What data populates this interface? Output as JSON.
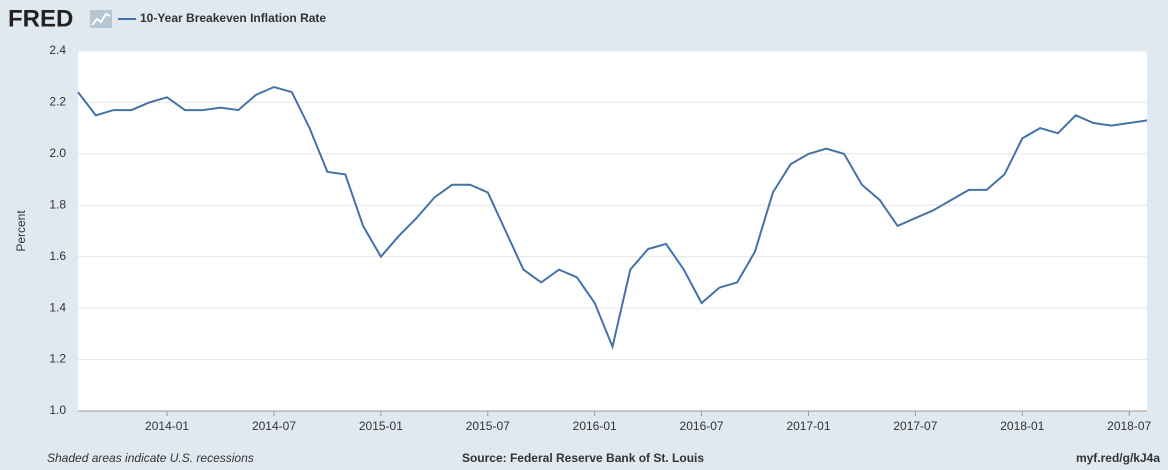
{
  "chart_data": {
    "type": "line",
    "brand": "FRED",
    "ylabel": "Percent",
    "footer_left": "Shaded areas indicate U.S. recessions",
    "footer_center": "Source: Federal Reserve Bank of St. Louis",
    "footer_right": "myf.red/g/kJ4a",
    "x": [
      "2013-08",
      "2013-09",
      "2013-10",
      "2013-11",
      "2013-12",
      "2014-01",
      "2014-02",
      "2014-03",
      "2014-04",
      "2014-05",
      "2014-06",
      "2014-07",
      "2014-08",
      "2014-09",
      "2014-10",
      "2014-11",
      "2014-12",
      "2015-01",
      "2015-02",
      "2015-03",
      "2015-04",
      "2015-05",
      "2015-06",
      "2015-07",
      "2015-08",
      "2015-09",
      "2015-10",
      "2015-11",
      "2015-12",
      "2016-01",
      "2016-02",
      "2016-03",
      "2016-04",
      "2016-05",
      "2016-06",
      "2016-07",
      "2016-08",
      "2016-09",
      "2016-10",
      "2016-11",
      "2016-12",
      "2017-01",
      "2017-02",
      "2017-03",
      "2017-04",
      "2017-05",
      "2017-06",
      "2017-07",
      "2017-08",
      "2017-09",
      "2017-10",
      "2017-11",
      "2017-12",
      "2018-01",
      "2018-02",
      "2018-03",
      "2018-04",
      "2018-05",
      "2018-06",
      "2018-07",
      "2018-08"
    ],
    "series": [
      {
        "name": "10-Year Breakeven Inflation Rate",
        "color": "#4572a7",
        "values": [
          2.24,
          2.15,
          2.17,
          2.17,
          2.2,
          2.22,
          2.17,
          2.17,
          2.18,
          2.17,
          2.23,
          2.26,
          2.24,
          2.1,
          1.93,
          1.92,
          1.72,
          1.6,
          1.68,
          1.75,
          1.83,
          1.88,
          1.88,
          1.85,
          1.7,
          1.55,
          1.5,
          1.55,
          1.52,
          1.42,
          1.25,
          1.55,
          1.63,
          1.65,
          1.55,
          1.42,
          1.48,
          1.5,
          1.62,
          1.85,
          1.96,
          2.0,
          2.02,
          2.0,
          1.88,
          1.82,
          1.72,
          1.75,
          1.78,
          1.82,
          1.86,
          1.86,
          1.92,
          2.06,
          2.1,
          2.08,
          2.15,
          2.12,
          2.11,
          2.12,
          2.13
        ]
      }
    ],
    "xlim": [
      "2013-08",
      "2018-08"
    ],
    "xticks": [
      "2014-01",
      "2014-07",
      "2015-01",
      "2015-07",
      "2016-01",
      "2016-07",
      "2017-01",
      "2017-07",
      "2018-01",
      "2018-07"
    ],
    "ylim": [
      1.0,
      2.4
    ],
    "yticks": [
      {
        "value": 1.0,
        "label": "1.0"
      },
      1.2,
      1.4,
      1.6,
      1.8,
      {
        "value": 2.0,
        "label": "2.0"
      },
      2.2,
      2.4
    ],
    "grid": true
  }
}
